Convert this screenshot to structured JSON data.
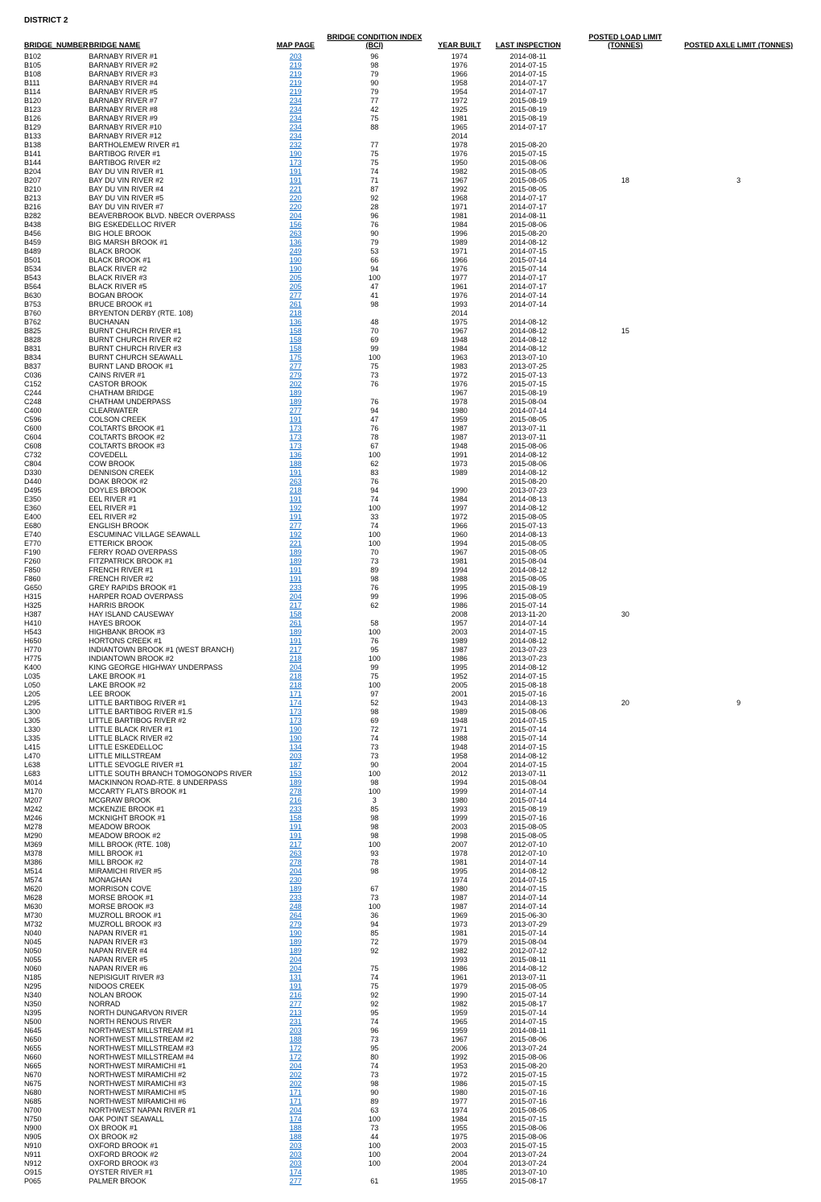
{
  "district": "DISTRICT 2",
  "columns": [
    "BRIDGE_NUMBER",
    "BRIDGE NAME",
    "MAP PAGE",
    "BRIDGE CONDITION INDEX (BCI)",
    "YEAR BUILT",
    "LAST INSPECTION",
    "POSTED LOAD LIMIT (TONNES)",
    "POSTED AXLE LIMIT (TONNES)"
  ],
  "rows": [
    [
      "B102",
      "BARNABY RIVER #1",
      "203",
      "96",
      "1974",
      "2014-08-11",
      "",
      ""
    ],
    [
      "B105",
      "BARNABY RIVER #2",
      "219",
      "98",
      "1976",
      "2014-07-15",
      "",
      ""
    ],
    [
      "B108",
      "BARNABY RIVER #3",
      "219",
      "79",
      "1966",
      "2014-07-15",
      "",
      ""
    ],
    [
      "B111",
      "BARNABY RIVER #4",
      "219",
      "90",
      "1958",
      "2014-07-17",
      "",
      ""
    ],
    [
      "B114",
      "BARNABY RIVER #5",
      "219",
      "79",
      "1954",
      "2014-07-17",
      "",
      ""
    ],
    [
      "B120",
      "BARNABY RIVER #7",
      "234",
      "77",
      "1972",
      "2015-08-19",
      "",
      ""
    ],
    [
      "B123",
      "BARNABY RIVER #8",
      "234",
      "42",
      "1925",
      "2015-08-19",
      "",
      ""
    ],
    [
      "B126",
      "BARNABY RIVER #9",
      "234",
      "75",
      "1981",
      "2015-08-19",
      "",
      ""
    ],
    [
      "B129",
      "BARNABY RIVER #10",
      "234",
      "88",
      "1965",
      "2014-07-17",
      "",
      ""
    ],
    [
      "B133",
      "BARNABY RIVER #12",
      "234",
      "",
      "2014",
      "",
      "",
      ""
    ],
    [
      "B138",
      "BARTHOLEMEW RIVER #1",
      "232",
      "77",
      "1978",
      "2015-08-20",
      "",
      ""
    ],
    [
      "B141",
      "BARTIBOG RIVER #1",
      "190",
      "75",
      "1976",
      "2015-07-15",
      "",
      ""
    ],
    [
      "B144",
      "BARTIBOG RIVER #2",
      "173",
      "75",
      "1950",
      "2015-08-06",
      "",
      ""
    ],
    [
      "B204",
      "BAY DU VIN RIVER #1",
      "191",
      "74",
      "1982",
      "2015-08-05",
      "",
      ""
    ],
    [
      "B207",
      "BAY DU VIN RIVER #2",
      "191",
      "71",
      "1967",
      "2015-08-05",
      "18",
      "3"
    ],
    [
      "B210",
      "BAY DU VIN RIVER #4",
      "221",
      "87",
      "1992",
      "2015-08-05",
      "",
      ""
    ],
    [
      "B213",
      "BAY DU VIN RIVER #5",
      "220",
      "92",
      "1968",
      "2014-07-17",
      "",
      ""
    ],
    [
      "B216",
      "BAY DU VIN RIVER #7",
      "220",
      "28",
      "1971",
      "2014-07-17",
      "",
      ""
    ],
    [
      "B282",
      "BEAVERBROOK BLVD. NBECR OVERPASS",
      "204",
      "96",
      "1981",
      "2014-08-11",
      "",
      ""
    ],
    [
      "B438",
      "BIG ESKEDELLOC RIVER",
      "156",
      "76",
      "1984",
      "2015-08-06",
      "",
      ""
    ],
    [
      "B456",
      "BIG HOLE BROOK",
      "263",
      "90",
      "1996",
      "2015-08-20",
      "",
      ""
    ],
    [
      "B459",
      "BIG MARSH BROOK #1",
      "136",
      "79",
      "1989",
      "2014-08-12",
      "",
      ""
    ],
    [
      "B489",
      "BLACK BROOK",
      "249",
      "53",
      "1971",
      "2014-07-15",
      "",
      ""
    ],
    [
      "B501",
      "BLACK BROOK #1",
      "190",
      "66",
      "1966",
      "2015-07-14",
      "",
      ""
    ],
    [
      "B534",
      "BLACK RIVER #2",
      "190",
      "94",
      "1976",
      "2015-07-14",
      "",
      ""
    ],
    [
      "B543",
      "BLACK RIVER #3",
      "205",
      "100",
      "1977",
      "2014-07-17",
      "",
      ""
    ],
    [
      "B564",
      "BLACK RIVER #5",
      "205",
      "47",
      "1961",
      "2014-07-17",
      "",
      ""
    ],
    [
      "B630",
      "BOGAN BROOK",
      "277",
      "41",
      "1976",
      "2014-07-14",
      "",
      ""
    ],
    [
      "B753",
      "BRUCE BROOK #1",
      "261",
      "98",
      "1993",
      "2014-07-14",
      "",
      ""
    ],
    [
      "B760",
      "BRYENTON DERBY (RTE. 108)",
      "218",
      "",
      "2014",
      "",
      "",
      ""
    ],
    [
      "B762",
      "BUCHANAN",
      "136",
      "48",
      "1975",
      "2014-08-12",
      "",
      ""
    ],
    [
      "B825",
      "BURNT CHURCH RIVER #1",
      "158",
      "70",
      "1967",
      "2014-08-12",
      "15",
      ""
    ],
    [
      "B828",
      "BURNT CHURCH RIVER #2",
      "158",
      "69",
      "1948",
      "2014-08-12",
      "",
      ""
    ],
    [
      "B831",
      "BURNT CHURCH RIVER #3",
      "158",
      "99",
      "1984",
      "2014-08-12",
      "",
      ""
    ],
    [
      "B834",
      "BURNT CHURCH SEAWALL",
      "175",
      "100",
      "1963",
      "2013-07-10",
      "",
      ""
    ],
    [
      "B837",
      "BURNT LAND BROOK #1",
      "277",
      "75",
      "1983",
      "2013-07-25",
      "",
      ""
    ],
    [
      "C036",
      "CAINS RIVER #1",
      "279",
      "73",
      "1972",
      "2015-07-13",
      "",
      ""
    ],
    [
      "C152",
      "CASTOR BROOK",
      "202",
      "76",
      "1976",
      "2015-07-15",
      "",
      ""
    ],
    [
      "C244",
      "CHATHAM BRIDGE",
      "189",
      "",
      "1967",
      "2015-08-19",
      "",
      ""
    ],
    [
      "C248",
      "CHATHAM UNDERPASS",
      "189",
      "76",
      "1978",
      "2015-08-04",
      "",
      ""
    ],
    [
      "C400",
      "CLEARWATER",
      "277",
      "94",
      "1980",
      "2014-07-14",
      "",
      ""
    ],
    [
      "C596",
      "COLSON CREEK",
      "191",
      "47",
      "1959",
      "2015-08-05",
      "",
      ""
    ],
    [
      "C600",
      "COLTARTS BROOK #1",
      "173",
      "76",
      "1987",
      "2013-07-11",
      "",
      ""
    ],
    [
      "C604",
      "COLTARTS BROOK #2",
      "173",
      "78",
      "1987",
      "2013-07-11",
      "",
      ""
    ],
    [
      "C608",
      "COLTARTS BROOK #3",
      "173",
      "67",
      "1948",
      "2015-08-06",
      "",
      ""
    ],
    [
      "C732",
      "COVEDELL",
      "136",
      "100",
      "1991",
      "2014-08-12",
      "",
      ""
    ],
    [
      "C804",
      "COW BROOK",
      "188",
      "62",
      "1973",
      "2015-08-06",
      "",
      ""
    ],
    [
      "D330",
      "DENNISON CREEK",
      "191",
      "83",
      "1989",
      "2014-08-12",
      "",
      ""
    ],
    [
      "D440",
      "DOAK BROOK #2",
      "263",
      "76",
      "",
      "2015-08-20",
      "",
      ""
    ],
    [
      "D495",
      "DOYLES BROOK",
      "218",
      "94",
      "1990",
      "2013-07-23",
      "",
      ""
    ],
    [
      "E350",
      "EEL RIVER #1",
      "191",
      "74",
      "1984",
      "2014-08-13",
      "",
      ""
    ],
    [
      "E360",
      "EEL RIVER #1",
      "192",
      "100",
      "1997",
      "2014-08-12",
      "",
      ""
    ],
    [
      "E400",
      "EEL RIVER #2",
      "191",
      "33",
      "1972",
      "2015-08-05",
      "",
      ""
    ],
    [
      "E680",
      "ENGLISH BROOK",
      "277",
      "74",
      "1966",
      "2015-07-13",
      "",
      ""
    ],
    [
      "E740",
      "ESCUMINAC VILLAGE SEAWALL",
      "192",
      "100",
      "1960",
      "2014-08-13",
      "",
      ""
    ],
    [
      "E770",
      "ETTERICK BROOK",
      "221",
      "100",
      "1994",
      "2015-08-05",
      "",
      ""
    ],
    [
      "F190",
      "FERRY ROAD OVERPASS",
      "189",
      "70",
      "1967",
      "2015-08-05",
      "",
      ""
    ],
    [
      "F260",
      "FITZPATRICK BROOK #1",
      "189",
      "73",
      "1981",
      "2015-08-04",
      "",
      ""
    ],
    [
      "F850",
      "FRENCH RIVER #1",
      "191",
      "89",
      "1994",
      "2014-08-12",
      "",
      ""
    ],
    [
      "F860",
      "FRENCH RIVER #2",
      "191",
      "98",
      "1988",
      "2015-08-05",
      "",
      ""
    ],
    [
      "G650",
      "GREY RAPIDS BROOK #1",
      "233",
      "76",
      "1995",
      "2015-08-19",
      "",
      ""
    ],
    [
      "H315",
      "HARPER ROAD OVERPASS",
      "204",
      "99",
      "1996",
      "2015-08-05",
      "",
      ""
    ],
    [
      "H325",
      "HARRIS BROOK",
      "217",
      "62",
      "1986",
      "2015-07-14",
      "",
      ""
    ],
    [
      "H387",
      "HAY ISLAND CAUSEWAY",
      "158",
      "",
      "2008",
      "2013-11-20",
      "30",
      ""
    ],
    [
      "H410",
      "HAYES BROOK",
      "261",
      "58",
      "1957",
      "2014-07-14",
      "",
      ""
    ],
    [
      "H543",
      "HIGHBANK BROOK #3",
      "189",
      "100",
      "2003",
      "2014-07-15",
      "",
      ""
    ],
    [
      "H650",
      "HORTONS CREEK #1",
      "191",
      "76",
      "1989",
      "2014-08-12",
      "",
      ""
    ],
    [
      "H770",
      "INDIANTOWN BROOK #1 (WEST BRANCH)",
      "217",
      "95",
      "1987",
      "2013-07-23",
      "",
      ""
    ],
    [
      "H775",
      "INDIANTOWN BROOK #2",
      "218",
      "100",
      "1986",
      "2013-07-23",
      "",
      ""
    ],
    [
      "K400",
      "KING GEORGE HIGHWAY UNDERPASS",
      "204",
      "99",
      "1995",
      "2014-08-12",
      "",
      ""
    ],
    [
      "L035",
      "LAKE BROOK #1",
      "218",
      "75",
      "1952",
      "2014-07-15",
      "",
      ""
    ],
    [
      "L050",
      "LAKE BROOK #2",
      "218",
      "100",
      "2005",
      "2015-08-18",
      "",
      ""
    ],
    [
      "L205",
      "LEE BROOK",
      "171",
      "97",
      "2001",
      "2015-07-16",
      "",
      ""
    ],
    [
      "L295",
      "LITTLE BARTIBOG RIVER #1",
      "174",
      "52",
      "1943",
      "2014-08-13",
      "20",
      "9"
    ],
    [
      "L300",
      "LITTLE BARTIBOG RIVER #1.5",
      "173",
      "98",
      "1989",
      "2015-08-06",
      "",
      ""
    ],
    [
      "L305",
      "LITTLE BARTIBOG RIVER #2",
      "173",
      "69",
      "1948",
      "2014-07-15",
      "",
      ""
    ],
    [
      "L330",
      "LITTLE BLACK RIVER #1",
      "190",
      "72",
      "1971",
      "2015-07-14",
      "",
      ""
    ],
    [
      "L335",
      "LITTLE BLACK RIVER #2",
      "190",
      "74",
      "1988",
      "2015-07-14",
      "",
      ""
    ],
    [
      "L415",
      "LITTLE ESKEDELLOC",
      "134",
      "73",
      "1948",
      "2014-07-15",
      "",
      ""
    ],
    [
      "L470",
      "LITTLE MILLSTREAM",
      "203",
      "73",
      "1958",
      "2014-08-12",
      "",
      ""
    ],
    [
      "L638",
      "LITTLE SEVOGLE RIVER #1",
      "187",
      "90",
      "2004",
      "2014-07-15",
      "",
      ""
    ],
    [
      "L683",
      "LITTLE SOUTH BRANCH TOMOGONOPS RIVER",
      "153",
      "100",
      "2012",
      "2013-07-11",
      "",
      ""
    ],
    [
      "M014",
      "MACKINNON ROAD-RTE. 8 UNDERPASS",
      "189",
      "98",
      "1994",
      "2015-08-04",
      "",
      ""
    ],
    [
      "M170",
      "MCCARTY FLATS BROOK #1",
      "278",
      "100",
      "1999",
      "2014-07-14",
      "",
      ""
    ],
    [
      "M207",
      "MCGRAW BROOK",
      "216",
      "3",
      "1980",
      "2015-07-14",
      "",
      ""
    ],
    [
      "M242",
      "MCKENZIE BROOK #1",
      "233",
      "85",
      "1993",
      "2015-08-19",
      "",
      ""
    ],
    [
      "M246",
      "MCKNIGHT BROOK #1",
      "158",
      "98",
      "1999",
      "2015-07-16",
      "",
      ""
    ],
    [
      "M278",
      "MEADOW BROOK",
      "191",
      "98",
      "2003",
      "2015-08-05",
      "",
      ""
    ],
    [
      "M290",
      "MEADOW BROOK #2",
      "191",
      "98",
      "1998",
      "2015-08-05",
      "",
      ""
    ],
    [
      "M369",
      "MILL BROOK (RTE. 108)",
      "217",
      "100",
      "2007",
      "2012-07-10",
      "",
      ""
    ],
    [
      "M378",
      "MILL BROOK #1",
      "263",
      "93",
      "1978",
      "2012-07-10",
      "",
      ""
    ],
    [
      "M386",
      "MILL BROOK #2",
      "278",
      "78",
      "1981",
      "2014-07-14",
      "",
      ""
    ],
    [
      "M514",
      "MIRAMICHI RIVER #5",
      "204",
      "98",
      "1995",
      "2014-08-12",
      "",
      ""
    ],
    [
      "M574",
      "MONAGHAN",
      "230",
      "",
      "1974",
      "2014-07-15",
      "",
      ""
    ],
    [
      "M620",
      "MORRISON COVE",
      "189",
      "67",
      "1980",
      "2014-07-15",
      "",
      ""
    ],
    [
      "M628",
      "MORSE BROOK #1",
      "233",
      "73",
      "1987",
      "2014-07-14",
      "",
      ""
    ],
    [
      "M630",
      "MORSE BROOK #3",
      "248",
      "100",
      "1987",
      "2014-07-14",
      "",
      ""
    ],
    [
      "M730",
      "MUZROLL BROOK #1",
      "264",
      "36",
      "1969",
      "2015-06-30",
      "",
      ""
    ],
    [
      "M732",
      "MUZROLL BROOK #3",
      "279",
      "94",
      "1973",
      "2013-07-29",
      "",
      ""
    ],
    [
      "N040",
      "NAPAN RIVER #1",
      "190",
      "85",
      "1981",
      "2015-07-14",
      "",
      ""
    ],
    [
      "N045",
      "NAPAN RIVER #3",
      "189",
      "72",
      "1979",
      "2015-08-04",
      "",
      ""
    ],
    [
      "N050",
      "NAPAN RIVER #4",
      "189",
      "92",
      "1982",
      "2012-07-12",
      "",
      ""
    ],
    [
      "N055",
      "NAPAN RIVER #5",
      "204",
      "",
      "1993",
      "2015-08-11",
      "",
      ""
    ],
    [
      "N060",
      "NAPAN RIVER #6",
      "204",
      "75",
      "1986",
      "2014-08-12",
      "",
      ""
    ],
    [
      "N185",
      "NEPISIGUIT RIVER #3",
      "131",
      "74",
      "1961",
      "2013-07-11",
      "",
      ""
    ],
    [
      "N295",
      "NIDOOS CREEK",
      "191",
      "75",
      "1979",
      "2015-08-05",
      "",
      ""
    ],
    [
      "N340",
      "NOLAN BROOK",
      "216",
      "92",
      "1990",
      "2015-07-14",
      "",
      ""
    ],
    [
      "N350",
      "NORRAD",
      "277",
      "92",
      "1982",
      "2015-08-17",
      "",
      ""
    ],
    [
      "N395",
      "NORTH DUNGARVON RIVER",
      "213",
      "95",
      "1959",
      "2015-07-14",
      "",
      ""
    ],
    [
      "N500",
      "NORTH RENOUS RIVER",
      "231",
      "74",
      "1965",
      "2014-07-15",
      "",
      ""
    ],
    [
      "N645",
      "NORTHWEST MILLSTREAM #1",
      "203",
      "96",
      "1959",
      "2014-08-11",
      "",
      ""
    ],
    [
      "N650",
      "NORTHWEST MILLSTREAM #2",
      "188",
      "73",
      "1967",
      "2015-08-06",
      "",
      ""
    ],
    [
      "N655",
      "NORTHWEST MILLSTREAM #3",
      "172",
      "95",
      "2006",
      "2013-07-24",
      "",
      ""
    ],
    [
      "N660",
      "NORTHWEST MILLSTREAM #4",
      "172",
      "80",
      "1992",
      "2015-08-06",
      "",
      ""
    ],
    [
      "N665",
      "NORTHWEST MIRAMICHI #1",
      "204",
      "74",
      "1953",
      "2015-08-20",
      "",
      ""
    ],
    [
      "N670",
      "NORTHWEST MIRAMICHI #2",
      "202",
      "73",
      "1972",
      "2015-07-15",
      "",
      ""
    ],
    [
      "N675",
      "NORTHWEST MIRAMICHI #3",
      "202",
      "98",
      "1986",
      "2015-07-15",
      "",
      ""
    ],
    [
      "N680",
      "NORTHWEST MIRAMICHI #5",
      "171",
      "90",
      "1980",
      "2015-07-16",
      "",
      ""
    ],
    [
      "N685",
      "NORTHWEST MIRAMICHI #6",
      "171",
      "89",
      "1977",
      "2015-07-16",
      "",
      ""
    ],
    [
      "N700",
      "NORTHWEST NAPAN RIVER #1",
      "204",
      "63",
      "1974",
      "2015-08-05",
      "",
      ""
    ],
    [
      "N750",
      "OAK POINT SEAWALL",
      "174",
      "100",
      "1984",
      "2015-07-15",
      "",
      ""
    ],
    [
      "N900",
      "OX BROOK #1",
      "188",
      "73",
      "1955",
      "2015-08-06",
      "",
      ""
    ],
    [
      "N905",
      "OX BROOK #2",
      "188",
      "44",
      "1975",
      "2015-08-06",
      "",
      ""
    ],
    [
      "N910",
      "OXFORD BROOK #1",
      "203",
      "100",
      "2003",
      "2015-07-15",
      "",
      ""
    ],
    [
      "N911",
      "OXFORD BROOK #2",
      "203",
      "100",
      "2004",
      "2013-07-24",
      "",
      ""
    ],
    [
      "N912",
      "OXFORD BROOK #3",
      "203",
      "100",
      "2004",
      "2013-07-24",
      "",
      ""
    ],
    [
      "O915",
      "OYSTER RIVER #1",
      "174",
      "",
      "1985",
      "2013-07-10",
      "",
      ""
    ],
    [
      "P065",
      "PALMER BROOK",
      "277",
      "61",
      "1955",
      "2015-08-17",
      "",
      ""
    ]
  ]
}
